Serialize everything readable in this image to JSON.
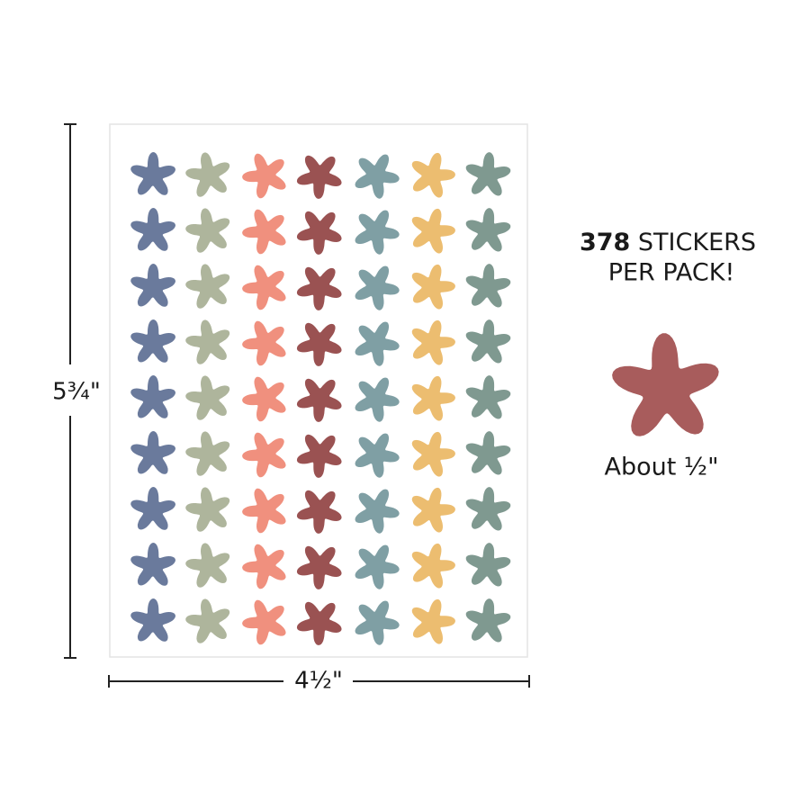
{
  "dimensions": {
    "height": "5¾\"",
    "width": "4½\""
  },
  "promo": {
    "count": "378",
    "line1_rest": "STICKERS",
    "line2": "PER PACK!"
  },
  "sample": {
    "caption": "About ½\""
  }
}
